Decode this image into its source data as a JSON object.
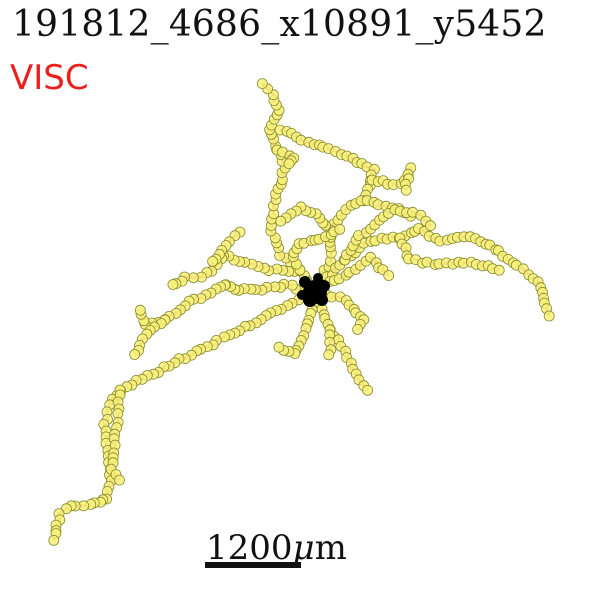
{
  "title": "191812_4686_x10891_y5452",
  "region": "VISC",
  "scale_bar": {
    "number": "1200",
    "unit_italic": "μ",
    "unit_rest": "m"
  },
  "colors": {
    "title": "#111111",
    "region": "#e8211c",
    "edge": "#f07c6e",
    "node_fill": "#f8f27a",
    "node_stroke": "#8a8a30",
    "soma": "#000000"
  }
}
